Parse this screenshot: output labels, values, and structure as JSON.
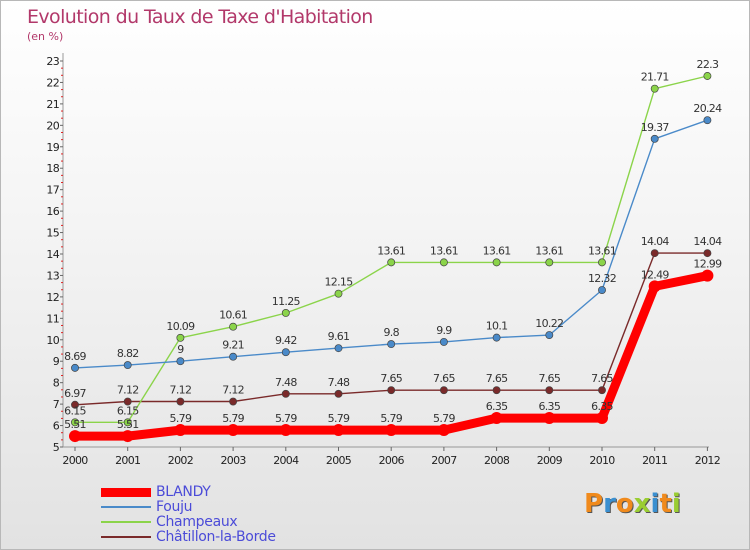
{
  "header": {
    "title": "Evolution du Taux de Taxe d'Habitation",
    "subtitle": "(en %)"
  },
  "logo": {
    "text": "Proxiti"
  },
  "chart_data": {
    "type": "line",
    "title": "Evolution du Taux de Taxe d'Habitation",
    "ylabel": "(en %)",
    "xlabel": "",
    "ylim": [
      5,
      23
    ],
    "yticks": [
      "5",
      "6",
      "7",
      "8",
      "9",
      "10",
      "11",
      "12",
      "13",
      "14",
      "15",
      "16",
      "17",
      "18",
      "19",
      "20",
      "21",
      "22",
      "23"
    ],
    "x": [
      "2000",
      "2001",
      "2002",
      "2003",
      "2004",
      "2005",
      "2006",
      "2007",
      "2008",
      "2009",
      "2010",
      "2011",
      "2012"
    ],
    "grid": false,
    "legend_position": "bottom-left",
    "series": [
      {
        "name": "BLANDY",
        "color": "#ff0000",
        "values": [
          5.51,
          5.51,
          5.79,
          5.79,
          5.79,
          5.79,
          5.79,
          5.79,
          6.35,
          6.35,
          6.35,
          12.49,
          12.99
        ],
        "labels": [
          "5.51",
          "5.51",
          "5.79",
          "5.79",
          "5.79",
          "5.79",
          "5.79",
          "5.79",
          "6.35",
          "6.35",
          "6.35",
          "12.49",
          "12.99"
        ]
      },
      {
        "name": "Fouju",
        "color": "#4a8ac9",
        "values": [
          8.69,
          8.82,
          9,
          9.21,
          9.42,
          9.61,
          9.8,
          9.9,
          10.1,
          10.22,
          12.32,
          19.37,
          20.24
        ],
        "labels": [
          "8.69",
          "8.82",
          "9",
          "9.21",
          "9.42",
          "9.61",
          "9.8",
          "9.9",
          "10.1",
          "10.22",
          "12.32",
          "19.37",
          "20.24"
        ]
      },
      {
        "name": "Champeaux",
        "color": "#8bd44a",
        "values": [
          6.15,
          6.15,
          10.09,
          10.61,
          11.25,
          12.15,
          13.61,
          13.61,
          13.61,
          13.61,
          13.61,
          21.71,
          22.3
        ],
        "labels": [
          "6.15",
          "6.15",
          "10.09",
          "10.61",
          "11.25",
          "12.15",
          "13.61",
          "13.61",
          "13.61",
          "13.61",
          "13.61",
          "21.71",
          "22.3"
        ]
      },
      {
        "name": "Châtillon-la-Borde",
        "color": "#7a2a2a",
        "values": [
          6.97,
          7.12,
          7.12,
          7.12,
          7.48,
          7.48,
          7.65,
          7.65,
          7.65,
          7.65,
          7.65,
          14.04,
          14.04
        ],
        "labels": [
          "6.97",
          "7.12",
          "7.12",
          "7.12",
          "7.48",
          "7.48",
          "7.65",
          "7.65",
          "7.65",
          "7.65",
          "7.65",
          "14.04",
          "14.04"
        ]
      }
    ]
  }
}
